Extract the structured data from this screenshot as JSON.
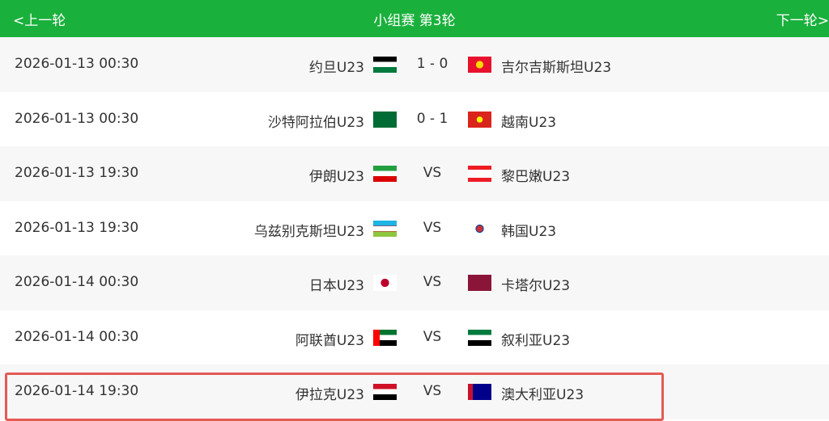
{
  "header": {
    "prev": "<上一轮",
    "title": "小组赛 第3轮",
    "next": "下一轮>"
  },
  "matches": [
    {
      "date": "2026-01-13 00:30",
      "home": "约旦U23",
      "home_flag": "jordan-flag",
      "score": "1 - 0",
      "away": "吉尔吉斯斯坦U23",
      "away_flag": "kyrgyzstan-flag"
    },
    {
      "date": "2026-01-13 00:30",
      "home": "沙特阿拉伯U23",
      "home_flag": "saudi-flag",
      "score": "0 - 1",
      "away": "越南U23",
      "away_flag": "vietnam-flag"
    },
    {
      "date": "2026-01-13 19:30",
      "home": "伊朗U23",
      "home_flag": "iran-flag",
      "score": "VS",
      "away": "黎巴嫩U23",
      "away_flag": "lebanon-flag"
    },
    {
      "date": "2026-01-13 19:30",
      "home": "乌兹别克斯坦U23",
      "home_flag": "uzbekistan-flag",
      "score": "VS",
      "away": "韩国U23",
      "away_flag": "korea-flag"
    },
    {
      "date": "2026-01-14 00:30",
      "home": "日本U23",
      "home_flag": "japan-flag",
      "score": "VS",
      "away": "卡塔尔U23",
      "away_flag": "qatar-flag"
    },
    {
      "date": "2026-01-14 00:30",
      "home": "阿联酋U23",
      "home_flag": "uae-flag",
      "score": "VS",
      "away": "叙利亚U23",
      "away_flag": "syria-flag"
    },
    {
      "date": "2026-01-14 19:30",
      "home": "伊拉克U23",
      "home_flag": "iraq-flag",
      "score": "VS",
      "away": "澳大利亚U23",
      "away_flag": "australia-flag"
    }
  ],
  "colors": {
    "header": "#1ab03c",
    "highlight": "#e45a55"
  }
}
